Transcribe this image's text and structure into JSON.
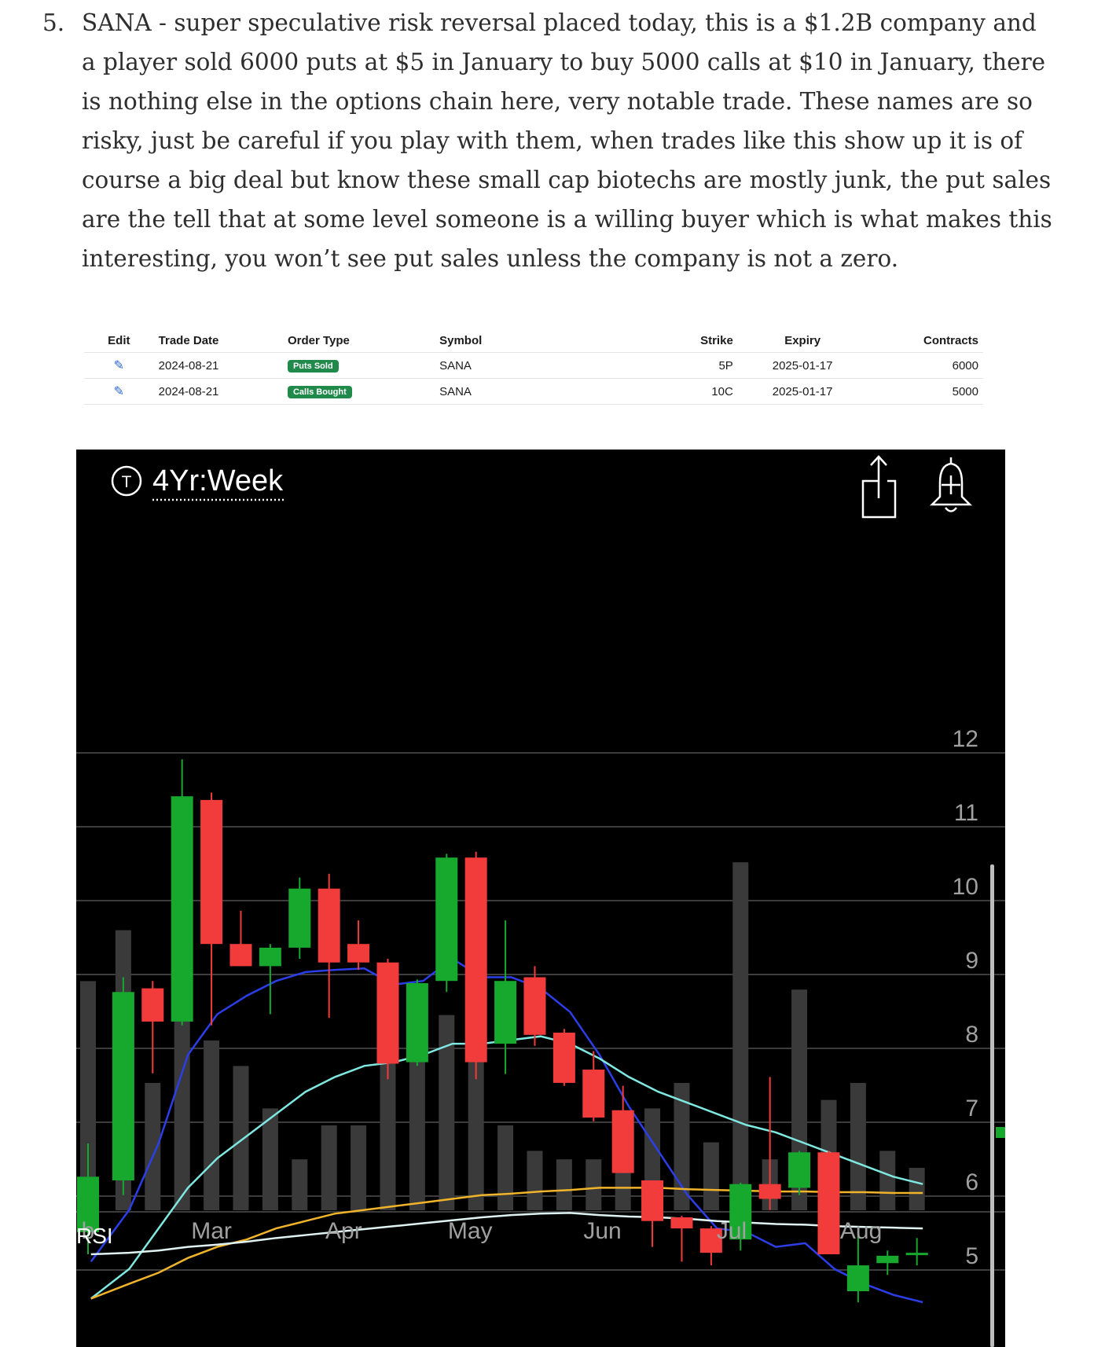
{
  "paragraph": {
    "number": "5.",
    "text": "SANA - super speculative risk reversal placed today, this is a $1.2B company and a player sold 6000 puts at $5 in January to buy 5000 calls at $10 in January, there is nothing else in the options chain here, very notable trade. These names are so risky, just be careful if you play with them, when trades like this show up it is of course a big deal but know these small cap biotechs are mostly junk, the put sales are the tell that at some level someone is a willing buyer which is what makes this interesting, you won’t see put sales unless the company is not a zero."
  },
  "trades_table": {
    "headers": [
      "Edit",
      "Trade Date",
      "Order Type",
      "Symbol",
      "Strike",
      "Expiry",
      "Contracts"
    ],
    "rows": [
      {
        "trade_date": "2024-08-21",
        "order_type": "Puts Sold",
        "symbol": "SANA",
        "strike": "5P",
        "expiry": "2025-01-17",
        "contracts": "6000"
      },
      {
        "trade_date": "2024-08-21",
        "order_type": "Calls Bought",
        "symbol": "SANA",
        "strike": "10C",
        "expiry": "2025-01-17",
        "contracts": "5000"
      }
    ],
    "badge_color": "#1f8a4a",
    "pencil_color": "#2a66d6"
  },
  "chart_toolbar": {
    "symbol_badge": "T",
    "timeframe": "4Yr:Week",
    "share_icon": "share-icon",
    "alert_icon": "alert-bell-plus-icon"
  },
  "chart_data": {
    "type": "candlestick",
    "y_ticks": [
      12,
      11,
      10,
      9,
      8,
      7,
      6,
      5
    ],
    "ylim": [
      3.3,
      13.2
    ],
    "x_labels": [
      {
        "label": "b",
        "week": -0.4
      },
      {
        "label": "Mar",
        "week": 3.8
      },
      {
        "label": "Apr",
        "week": 8.3
      },
      {
        "label": "May",
        "week": 12.6
      },
      {
        "label": "Jun",
        "week": 17.1
      },
      {
        "label": "Jul",
        "week": 21.5
      },
      {
        "label": "Aug",
        "week": 25.9
      }
    ],
    "indicator_label": "RSI",
    "candles": [
      {
        "o": 5.3,
        "h": 6.5,
        "l": 5.0,
        "c": 6.05
      },
      {
        "o": 6.0,
        "h": 8.75,
        "l": 5.8,
        "c": 8.55
      },
      {
        "o": 8.6,
        "h": 8.7,
        "l": 7.45,
        "c": 8.15
      },
      {
        "o": 8.15,
        "h": 11.7,
        "l": 8.1,
        "c": 11.2
      },
      {
        "o": 11.15,
        "h": 11.25,
        "l": 8.1,
        "c": 9.2
      },
      {
        "o": 9.2,
        "h": 9.65,
        "l": 8.9,
        "c": 8.9
      },
      {
        "o": 8.9,
        "h": 9.2,
        "l": 8.25,
        "c": 9.15
      },
      {
        "o": 9.15,
        "h": 10.1,
        "l": 9.0,
        "c": 9.95
      },
      {
        "o": 9.95,
        "h": 10.15,
        "l": 8.2,
        "c": 8.95
      },
      {
        "o": 9.2,
        "h": 9.52,
        "l": 8.85,
        "c": 8.95
      },
      {
        "o": 8.95,
        "h": 9.0,
        "l": 7.37,
        "c": 7.58
      },
      {
        "o": 7.6,
        "h": 8.72,
        "l": 7.55,
        "c": 8.67
      },
      {
        "o": 8.7,
        "h": 10.42,
        "l": 8.55,
        "c": 10.37
      },
      {
        "o": 10.37,
        "h": 10.45,
        "l": 7.37,
        "c": 7.6
      },
      {
        "o": 7.85,
        "h": 9.52,
        "l": 7.44,
        "c": 8.7
      },
      {
        "o": 8.75,
        "h": 8.9,
        "l": 7.82,
        "c": 7.97
      },
      {
        "o": 8.0,
        "h": 8.05,
        "l": 7.28,
        "c": 7.32
      },
      {
        "o": 7.5,
        "h": 7.75,
        "l": 6.8,
        "c": 6.85
      },
      {
        "o": 6.95,
        "h": 7.28,
        "l": 6.1,
        "c": 6.1
      },
      {
        "o": 6.0,
        "h": 6.0,
        "l": 5.1,
        "c": 5.45
      },
      {
        "o": 5.5,
        "h": 5.52,
        "l": 4.9,
        "c": 5.35
      },
      {
        "o": 5.35,
        "h": 5.38,
        "l": 4.85,
        "c": 5.02
      },
      {
        "o": 5.2,
        "h": 5.97,
        "l": 5.05,
        "c": 5.95
      },
      {
        "o": 5.95,
        "h": 7.4,
        "l": 5.6,
        "c": 5.75
      },
      {
        "o": 5.9,
        "h": 6.4,
        "l": 5.8,
        "c": 6.38
      },
      {
        "o": 6.38,
        "h": 6.4,
        "l": 5.0,
        "c": 5.0
      },
      {
        "o": 4.5,
        "h": 5.3,
        "l": 4.35,
        "c": 4.85
      },
      {
        "o": 4.88,
        "h": 5.05,
        "l": 4.72,
        "c": 4.98
      },
      {
        "o": 5.0,
        "h": 5.22,
        "l": 4.85,
        "c": 5.02
      }
    ],
    "candle_weeks": [
      -0.4,
      0.8,
      1.8,
      2.8,
      3.8,
      4.8,
      5.8,
      6.8,
      7.8,
      8.8,
      9.8,
      10.8,
      11.8,
      12.8,
      13.8,
      14.8,
      15.8,
      16.8,
      17.8,
      18.8,
      19.8,
      20.8,
      21.8,
      22.8,
      23.8,
      24.8,
      25.8,
      26.8,
      27.8
    ],
    "volume_bars": [
      0.27,
      0.33,
      0.15,
      0.38,
      0.2,
      0.17,
      0.12,
      0.06,
      0.1,
      0.1,
      0.23,
      0.2,
      0.23,
      0.3,
      0.1,
      0.07,
      0.06,
      0.06,
      0.11,
      0.12,
      0.15,
      0.08,
      0.41,
      0.06,
      0.26,
      0.13,
      0.15,
      0.07,
      0.05
    ],
    "moving_averages": [
      {
        "color": "#2c3ee8",
        "values": [
          [
            -0.3,
            4.9
          ],
          [
            1.0,
            5.6
          ],
          [
            2.0,
            6.5
          ],
          [
            3.0,
            7.7
          ],
          [
            4.0,
            8.25
          ],
          [
            5.0,
            8.5
          ],
          [
            6.0,
            8.7
          ],
          [
            7.0,
            8.82
          ],
          [
            8.0,
            8.85
          ],
          [
            9.0,
            8.87
          ],
          [
            10.0,
            8.65
          ],
          [
            11.0,
            8.7
          ],
          [
            12.0,
            9.0
          ],
          [
            13.0,
            8.75
          ],
          [
            14.0,
            8.75
          ],
          [
            15.0,
            8.6
          ],
          [
            16.0,
            8.28
          ],
          [
            17.0,
            7.7
          ],
          [
            18.0,
            7.0
          ],
          [
            19.0,
            6.4
          ],
          [
            20.0,
            5.8
          ],
          [
            21.0,
            5.35
          ],
          [
            22.0,
            5.3
          ],
          [
            23.0,
            5.1
          ],
          [
            24.0,
            5.15
          ],
          [
            25.0,
            4.8
          ],
          [
            26.0,
            4.6
          ],
          [
            27.0,
            4.45
          ],
          [
            28.0,
            4.35
          ]
        ]
      },
      {
        "color": "#7fe8e0",
        "values": [
          [
            -0.3,
            4.4
          ],
          [
            1.0,
            4.8
          ],
          [
            2.0,
            5.35
          ],
          [
            3.0,
            5.9
          ],
          [
            4.0,
            6.3
          ],
          [
            5.0,
            6.6
          ],
          [
            6.0,
            6.9
          ],
          [
            7.0,
            7.2
          ],
          [
            8.0,
            7.4
          ],
          [
            9.0,
            7.55
          ],
          [
            10.0,
            7.6
          ],
          [
            11.0,
            7.7
          ],
          [
            12.0,
            7.85
          ],
          [
            13.0,
            7.85
          ],
          [
            14.0,
            7.9
          ],
          [
            15.0,
            7.95
          ],
          [
            16.0,
            7.85
          ],
          [
            17.0,
            7.65
          ],
          [
            18.0,
            7.4
          ],
          [
            19.0,
            7.2
          ],
          [
            20.0,
            7.05
          ],
          [
            21.0,
            6.9
          ],
          [
            22.0,
            6.75
          ],
          [
            23.0,
            6.65
          ],
          [
            24.0,
            6.5
          ],
          [
            25.0,
            6.35
          ],
          [
            26.0,
            6.2
          ],
          [
            27.0,
            6.05
          ],
          [
            28.0,
            5.95
          ]
        ]
      },
      {
        "color": "#f0b42a",
        "values": [
          [
            -0.3,
            4.4
          ],
          [
            1.0,
            4.6
          ],
          [
            2.0,
            4.75
          ],
          [
            3.0,
            4.95
          ],
          [
            4.0,
            5.1
          ],
          [
            5.0,
            5.2
          ],
          [
            6.0,
            5.35
          ],
          [
            7.0,
            5.45
          ],
          [
            8.0,
            5.55
          ],
          [
            9.0,
            5.6
          ],
          [
            10.0,
            5.65
          ],
          [
            11.0,
            5.7
          ],
          [
            12.0,
            5.75
          ],
          [
            13.0,
            5.8
          ],
          [
            14.0,
            5.82
          ],
          [
            15.0,
            5.85
          ],
          [
            16.0,
            5.87
          ],
          [
            17.0,
            5.9
          ],
          [
            18.0,
            5.9
          ],
          [
            19.0,
            5.9
          ],
          [
            20.0,
            5.88
          ],
          [
            21.0,
            5.87
          ],
          [
            22.0,
            5.86
          ],
          [
            23.0,
            5.85
          ],
          [
            24.0,
            5.85
          ],
          [
            25.0,
            5.84
          ],
          [
            26.0,
            5.84
          ],
          [
            27.0,
            5.83
          ],
          [
            28.0,
            5.83
          ]
        ]
      },
      {
        "color": "#dff4f2",
        "values": [
          [
            -0.3,
            5.0
          ],
          [
            1.0,
            5.02
          ],
          [
            2.0,
            5.05
          ],
          [
            3.0,
            5.1
          ],
          [
            4.0,
            5.13
          ],
          [
            5.0,
            5.17
          ],
          [
            6.0,
            5.22
          ],
          [
            7.0,
            5.26
          ],
          [
            8.0,
            5.3
          ],
          [
            9.0,
            5.34
          ],
          [
            10.0,
            5.38
          ],
          [
            11.0,
            5.42
          ],
          [
            12.0,
            5.46
          ],
          [
            13.0,
            5.5
          ],
          [
            14.0,
            5.53
          ],
          [
            15.0,
            5.55
          ],
          [
            16.0,
            5.56
          ],
          [
            17.0,
            5.53
          ],
          [
            18.0,
            5.51
          ],
          [
            19.0,
            5.5
          ],
          [
            20.0,
            5.48
          ],
          [
            21.0,
            5.45
          ],
          [
            22.0,
            5.43
          ],
          [
            23.0,
            5.41
          ],
          [
            24.0,
            5.4
          ],
          [
            25.0,
            5.38
          ],
          [
            26.0,
            5.37
          ],
          [
            27.0,
            5.36
          ],
          [
            28.0,
            5.35
          ]
        ]
      }
    ],
    "last_price": 5.0,
    "colors": {
      "up": "#17a82e",
      "down": "#f23b3b",
      "volume": "#3a3a3a",
      "grid": "#3c3c3c",
      "axis_text": "#a0a0a0",
      "background": "#000000",
      "last_price": "#17a82e"
    }
  }
}
